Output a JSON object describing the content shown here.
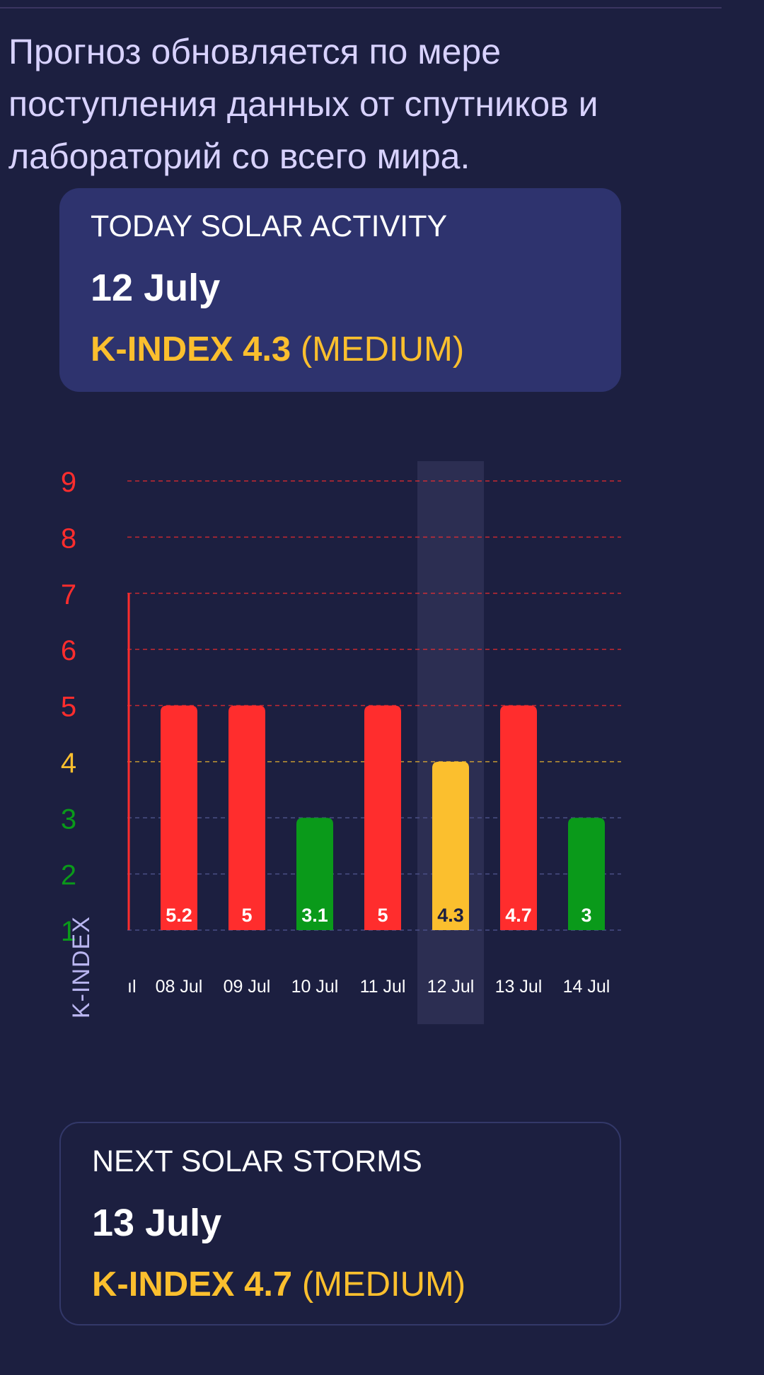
{
  "intro_text": "Прогноз обновляется по мере поступления данных от спутников и лабораторий со всего мира.",
  "today_card": {
    "title": "TODAY SOLAR ACTIVITY",
    "date": "12 July",
    "kindex_label": "K-INDEX 4.3",
    "level": "(MEDIUM)"
  },
  "next_card": {
    "title": "NEXT SOLAR STORMS",
    "date": "13 July",
    "kindex_label": "K-INDEX 4.7",
    "level": "(MEDIUM)"
  },
  "colors": {
    "background": "#1c1f40",
    "high": "#ff2d2d",
    "medium": "#fbbf2e",
    "low": "#0a9a1a",
    "card": "#2e336e",
    "highlight": "#2c2e52"
  },
  "chart_data": {
    "type": "bar",
    "ylabel": "K-INDEX",
    "ylim": [
      1,
      9
    ],
    "yticks": [
      "1",
      "2",
      "3",
      "4",
      "5",
      "6",
      "7",
      "8",
      "9"
    ],
    "partial_first_label": "ıl",
    "categories": [
      "08 Jul",
      "09 Jul",
      "10 Jul",
      "11 Jul",
      "12 Jul",
      "13 Jul",
      "14 Jul"
    ],
    "values": [
      5.2,
      5,
      3.1,
      5,
      4.3,
      4.7,
      3
    ],
    "bar_levels": [
      5,
      5,
      3,
      5,
      4,
      5,
      3
    ],
    "value_labels": [
      "5.2",
      "5",
      "3.1",
      "5",
      "4.3",
      "4.7",
      "3"
    ],
    "highlighted_category": "12 Jul",
    "grid": true
  }
}
